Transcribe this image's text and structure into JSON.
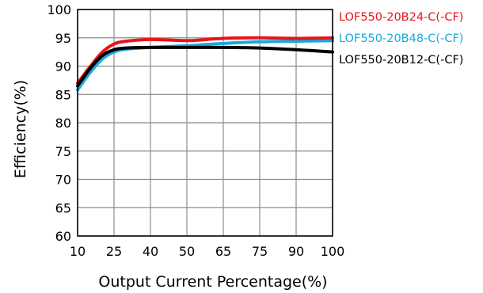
{
  "chart_data": {
    "type": "line",
    "title": "",
    "xlabel": "Output Current Percentage(%)",
    "ylabel": "Efficiency(%)",
    "x_categories": [
      "10",
      "25",
      "40",
      "50",
      "65",
      "75",
      "90",
      "100"
    ],
    "xlim": [
      10,
      100
    ],
    "ylim": [
      60,
      100
    ],
    "y_ticks": [
      60,
      65,
      70,
      75,
      80,
      85,
      90,
      95,
      100
    ],
    "grid": true,
    "legend_position": "right",
    "series": [
      {
        "name": "LOF550-20B24-C(-CF)",
        "color": "#e8141b",
        "x": [
          10,
          15,
          20,
          25,
          30,
          40,
          50,
          55,
          65,
          75,
          90,
          100
        ],
        "y": [
          87.0,
          89.8,
          92.4,
          93.9,
          94.4,
          94.7,
          94.5,
          94.6,
          94.9,
          95.0,
          94.9,
          95.0
        ]
      },
      {
        "name": "LOF550-20B48-C(-CF)",
        "color": "#1aa7dc",
        "x": [
          10,
          15,
          20,
          25,
          30,
          40,
          50,
          65,
          75,
          90,
          100
        ],
        "y": [
          85.8,
          88.8,
          91.2,
          92.5,
          93.0,
          93.3,
          93.6,
          94.0,
          94.3,
          94.4,
          94.5
        ]
      },
      {
        "name": "LOF550-20B12-C(-CF)",
        "color": "#000000",
        "x": [
          10,
          15,
          20,
          25,
          30,
          40,
          50,
          65,
          75,
          90,
          100
        ],
        "y": [
          86.5,
          89.5,
          91.8,
          92.9,
          93.2,
          93.3,
          93.3,
          93.3,
          93.2,
          92.9,
          92.5
        ]
      }
    ]
  }
}
